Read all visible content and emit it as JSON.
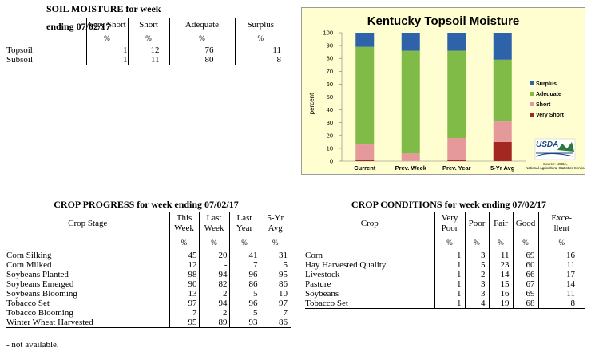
{
  "soil": {
    "title": "SOIL MOISTURE for week ending 07/02/17",
    "columns": [
      "Very Short",
      "Short",
      "Adequate",
      "Surplus"
    ],
    "unit": "%",
    "rows": [
      {
        "label": "Topsoil",
        "values": [
          "1",
          "12",
          "76",
          "11"
        ]
      },
      {
        "label": "Subsoil",
        "values": [
          "1",
          "11",
          "80",
          "8"
        ]
      }
    ]
  },
  "chart": {
    "usda_logo": "USDA",
    "source_note": "Source: USDA, National Agricultural Statistics Service"
  },
  "chart_data": {
    "type": "bar",
    "stacked": true,
    "title": "Kentucky Topsoil Moisture",
    "xlabel": "",
    "ylabel": "percent",
    "ylim": [
      0,
      100
    ],
    "yticks": [
      0,
      10,
      20,
      30,
      40,
      50,
      60,
      70,
      80,
      90,
      100
    ],
    "categories": [
      "Current",
      "Prev. Week",
      "Prev. Year",
      "5-Yr Avg"
    ],
    "legend_position": "right",
    "grid": false,
    "series": [
      {
        "name": "Very Short",
        "color": "#a42822",
        "values": [
          1,
          0,
          1,
          15
        ]
      },
      {
        "name": "Short",
        "color": "#e6999b",
        "values": [
          12,
          6,
          17,
          16
        ]
      },
      {
        "name": "Adequate",
        "color": "#7fbb46",
        "values": [
          76,
          80,
          68,
          48
        ]
      },
      {
        "name": "Surplus",
        "color": "#2f63a9",
        "values": [
          11,
          14,
          14,
          21
        ]
      }
    ],
    "legend_order": [
      "Surplus",
      "Adequate",
      "Short",
      "Very Short"
    ]
  },
  "progress": {
    "title": "CROP PROGRESS for week ending 07/02/17",
    "stage_header": "Crop Stage",
    "columns": [
      [
        "This",
        "Week"
      ],
      [
        "Last",
        "Week"
      ],
      [
        "Last",
        "Year"
      ],
      [
        "5-Yr",
        "Avg"
      ]
    ],
    "unit": "%",
    "rows": [
      {
        "label": "Corn Silking",
        "values": [
          "45",
          "20",
          "41",
          "31"
        ]
      },
      {
        "label": "Corn Milked",
        "values": [
          "12",
          "-",
          "7",
          "5"
        ]
      },
      {
        "label": "Soybeans Planted",
        "values": [
          "98",
          "94",
          "96",
          "95"
        ]
      },
      {
        "label": "Soybeans Emerged",
        "values": [
          "90",
          "82",
          "86",
          "86"
        ]
      },
      {
        "label": "Soybeans Blooming",
        "values": [
          "13",
          "2",
          "5",
          "10"
        ]
      },
      {
        "label": "Tobacco Set",
        "values": [
          "97",
          "94",
          "96",
          "97"
        ]
      },
      {
        "label": "Tobacco Blooming",
        "values": [
          "7",
          "2",
          "5",
          "7"
        ]
      },
      {
        "label": "Winter Wheat Harvested",
        "values": [
          "95",
          "89",
          "93",
          "86"
        ]
      }
    ],
    "footnote": "- not available."
  },
  "conditions": {
    "title": "CROP CONDITIONS for week ending 07/02/17",
    "crop_header": "Crop",
    "columns": [
      [
        "Very",
        "Poor"
      ],
      [
        "Poor",
        ""
      ],
      [
        "Fair",
        ""
      ],
      [
        "Good",
        ""
      ],
      [
        "Exce-",
        "llent"
      ]
    ],
    "unit": "%",
    "rows": [
      {
        "label": "Corn",
        "values": [
          "1",
          "3",
          "11",
          "69",
          "16"
        ]
      },
      {
        "label": "Hay Harvested Quality",
        "values": [
          "1",
          "5",
          "23",
          "60",
          "11"
        ]
      },
      {
        "label": "Livestock",
        "values": [
          "1",
          "2",
          "14",
          "66",
          "17"
        ]
      },
      {
        "label": "Pasture",
        "values": [
          "1",
          "3",
          "15",
          "67",
          "14"
        ]
      },
      {
        "label": "Soybeans",
        "values": [
          "1",
          "3",
          "16",
          "69",
          "11"
        ]
      },
      {
        "label": "Tobacco Set",
        "values": [
          "1",
          "4",
          "19",
          "68",
          "8"
        ]
      }
    ]
  }
}
